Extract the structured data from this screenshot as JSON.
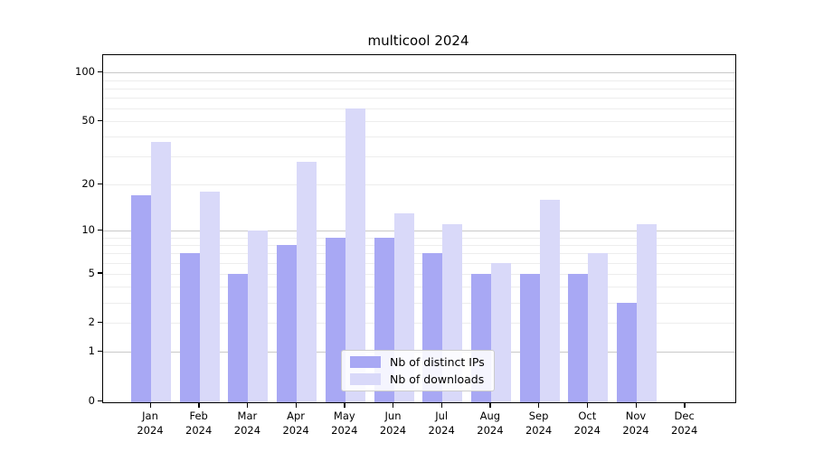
{
  "title": "multicool 2024",
  "chart_data": {
    "type": "bar",
    "title": "multicool 2024",
    "xlabel": "",
    "ylabel": "",
    "y_scale": "log1p",
    "ylim": [
      0,
      128
    ],
    "grid": true,
    "legend_position": "lower center",
    "categories": [
      "Jan 2024",
      "Feb 2024",
      "Mar 2024",
      "Apr 2024",
      "May 2024",
      "Jun 2024",
      "Jul 2024",
      "Aug 2024",
      "Sep 2024",
      "Oct 2024",
      "Nov 2024",
      "Dec 2024"
    ],
    "y_ticks": [
      0,
      1,
      2,
      5,
      10,
      20,
      50,
      100
    ],
    "y_tick_labels": [
      "0",
      "1",
      "2",
      "5",
      "10",
      "20",
      "50",
      "100"
    ],
    "series": [
      {
        "name": "Nb of distinct IPs",
        "color": "#a8a8f4",
        "values": [
          17,
          7,
          5,
          8,
          9,
          9,
          7,
          5,
          5,
          5,
          3,
          0
        ]
      },
      {
        "name": "Nb of downloads",
        "color": "#d9d9f9",
        "values": [
          37,
          18,
          10,
          28,
          60,
          13,
          11,
          6,
          16,
          7,
          11,
          0
        ]
      }
    ]
  },
  "colors": {
    "background": "#ffffff",
    "spine": "#000000",
    "grid_major": "#c9c9c9",
    "grid_minor": "#ededed",
    "legend_border": "#cccccc",
    "text": "#000000"
  }
}
